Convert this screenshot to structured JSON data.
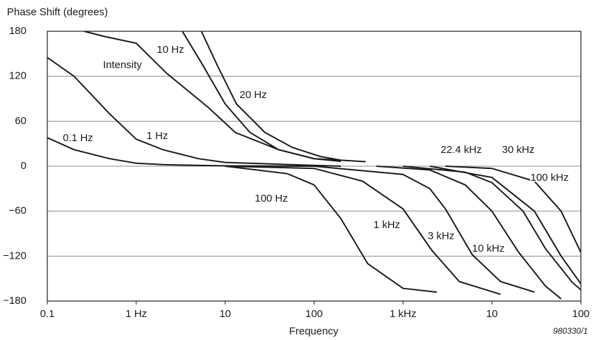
{
  "chart_data": {
    "type": "line",
    "title": "Phase Shift (degrees)",
    "x_label": "Frequency",
    "annotation": "980330/1",
    "xscale": "log",
    "xlim": [
      0.1,
      100000
    ],
    "xticks": [
      0.1,
      {
        "value": 1,
        "label": "1 Hz"
      },
      10,
      100,
      {
        "value": 1000,
        "label": "1 kHz"
      },
      {
        "value": 10000,
        "label": "10"
      },
      {
        "value": 100000,
        "label": "100"
      }
    ],
    "ylim": [
      -180,
      180
    ],
    "yticks": [
      180,
      120,
      60,
      0,
      {
        "value": -60,
        "label": "−60"
      },
      {
        "value": -120,
        "label": "−120"
      },
      {
        "value": -180,
        "label": "−180"
      }
    ],
    "grid": true,
    "color": "#1a1a1a",
    "series": [
      {
        "name": "0.1 Hz",
        "x": [
          0.1,
          0.2,
          0.5,
          1,
          2,
          5,
          10,
          100
        ],
        "values": [
          38,
          22,
          10,
          4,
          2,
          1,
          0.5,
          0
        ]
      },
      {
        "name": "1 Hz",
        "x": [
          0.1,
          0.2,
          0.5,
          1,
          2,
          5,
          10,
          100,
          200
        ],
        "values": [
          145,
          120,
          70,
          36,
          22,
          10,
          5,
          1,
          0
        ]
      },
      {
        "name": "Intensity",
        "x": [
          0.26,
          0.44,
          1,
          2.2,
          6.5,
          13,
          40,
          100,
          200
        ],
        "values": [
          180,
          173,
          164,
          124,
          78,
          45,
          22,
          10,
          6.5
        ]
      },
      {
        "name": "10 Hz",
        "x": [
          3.3,
          5.4,
          10,
          19,
          40,
          100,
          380
        ],
        "values": [
          180,
          138,
          83,
          45,
          22,
          10,
          6
        ]
      },
      {
        "name": "20 Hz",
        "x": [
          5.4,
          8.2,
          13.4,
          28,
          57,
          117,
          200
        ],
        "values": [
          180,
          134,
          83,
          45,
          25,
          13,
          8
        ]
      },
      {
        "name": "100 Hz",
        "x": [
          10,
          50,
          100,
          200,
          400,
          1000,
          2400
        ],
        "values": [
          0,
          -10,
          -25,
          -70,
          -130,
          -163,
          -168
        ]
      },
      {
        "name": "1 kHz",
        "x": [
          10,
          100,
          350,
          1000,
          2100,
          4300,
          12500
        ],
        "values": [
          0,
          -3,
          -20,
          -57,
          -112,
          -154,
          -171
        ]
      },
      {
        "name": "3 kHz",
        "x": [
          100,
          1000,
          2000,
          3000,
          6000,
          12500,
          30000
        ],
        "values": [
          0,
          -11,
          -30,
          -57,
          -118,
          -154,
          -168
        ]
      },
      {
        "name": "10 kHz",
        "x": [
          500,
          2000,
          5000,
          10000,
          20000,
          40000,
          60000
        ],
        "values": [
          0,
          -5,
          -25,
          -60,
          -115,
          -160,
          -177
        ]
      },
      {
        "name": "22.4 kHz",
        "x": [
          1000,
          5000,
          10000,
          22400,
          40000,
          80000,
          100000
        ],
        "values": [
          0,
          -8,
          -22,
          -60,
          -110,
          -155,
          -165
        ]
      },
      {
        "name": "30 kHz",
        "x": [
          2000,
          10000,
          30000,
          60000,
          100000
        ],
        "values": [
          0,
          -15,
          -60,
          -120,
          -157
        ]
      },
      {
        "name": "100 kHz",
        "x": [
          3000,
          10000,
          30000,
          60000,
          100000
        ],
        "values": [
          0,
          -3,
          -20,
          -60,
          -115
        ]
      }
    ]
  }
}
